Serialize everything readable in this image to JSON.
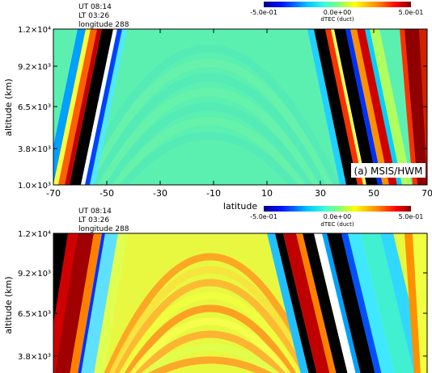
{
  "chart_data": [
    {
      "type": "heatmap",
      "panel_label": "(a) MSIS/HWM",
      "info": [
        "UT 08:14",
        "LT 03:26",
        "longitude 288"
      ],
      "xlabel": "latitude",
      "ylabel": "altitude (km)",
      "xlim": [
        -70,
        70
      ],
      "ylim": [
        1000,
        12000
      ],
      "x_ticks": [
        "-70",
        "-50",
        "-30",
        "-10",
        "10",
        "30",
        "50",
        "70"
      ],
      "x_tick_values": [
        -70,
        -50,
        -30,
        -10,
        10,
        30,
        50,
        70
      ],
      "y_ticks": [
        "1.0×10³",
        "3.8×10³",
        "6.5×10³",
        "9.2×10³",
        "1.2×10⁴"
      ],
      "y_tick_values": [
        1000,
        3800,
        6500,
        9200,
        12000
      ],
      "colorbar": {
        "label": "dTEC (duct)",
        "min_label": "-5.0e-01",
        "mid_label": "0.0e+00",
        "max_label": "5.0e-01",
        "range": [
          -0.5,
          0.5
        ]
      }
    },
    {
      "type": "heatmap",
      "info": [
        "UT 08:14",
        "LT 03:26",
        "longitude 288"
      ],
      "ylabel": "altitude (km)",
      "xlim": [
        -70,
        70
      ],
      "ylim": [
        1000,
        12000
      ],
      "y_ticks": [
        "3.8×10³",
        "6.5×10³",
        "9.2×10³",
        "1.2×10⁴"
      ],
      "y_tick_values": [
        3800,
        6500,
        9200,
        12000
      ],
      "colorbar": {
        "label": "dTEC (duct)",
        "min_label": "-5.0e-01",
        "mid_label": "0.0e+00",
        "max_label": "5.0e-01",
        "range": [
          -0.5,
          0.5
        ]
      }
    }
  ]
}
